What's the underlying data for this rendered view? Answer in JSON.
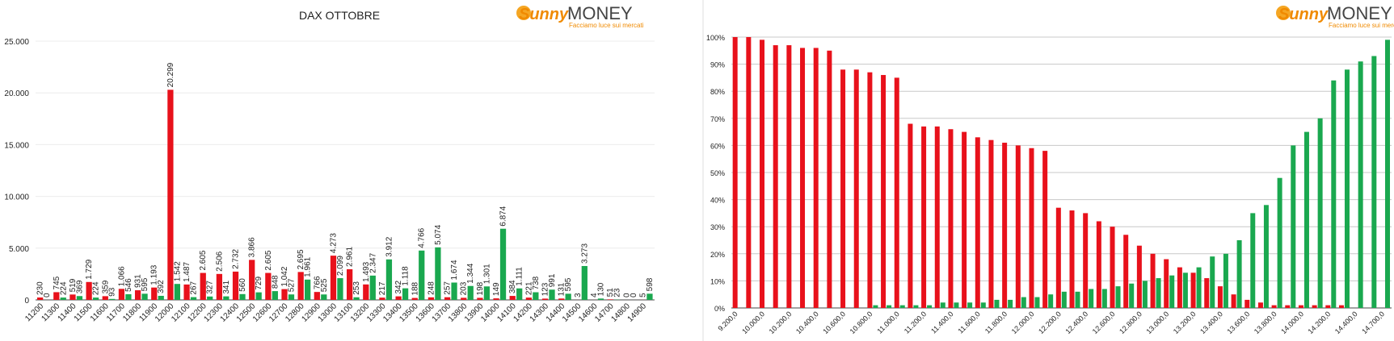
{
  "chart_data": [
    {
      "type": "bar",
      "title": "DAX OTTOBRE",
      "brand": "Sunny",
      "brand_suffix": "MONEY",
      "tagline": "Facciamo luce sui mercati",
      "categories": [
        "11200",
        "11300",
        "11400",
        "11500",
        "11600",
        "11700",
        "11800",
        "11900",
        "12000",
        "12100",
        "12200",
        "12300",
        "12400",
        "12500",
        "12600",
        "12700",
        "12800",
        "12900",
        "13000",
        "13100",
        "13200",
        "13300",
        "13400",
        "13500",
        "13600",
        "13700",
        "13800",
        "13900",
        "14000",
        "14100",
        "14200",
        "14300",
        "14400",
        "14500",
        "14600",
        "14700",
        "14800",
        "14900"
      ],
      "series": [
        {
          "color": "#e8111b",
          "values": [
            230,
            745,
            519,
            1729,
            359,
            1066,
            931,
            1193,
            20299,
            1487,
            2605,
            2506,
            2732,
            3866,
            2605,
            1042,
            2695,
            766,
            4273,
            2961,
            1493,
            217,
            342,
            188,
            248,
            257,
            203,
            198,
            149,
            384,
            221,
            123,
            131,
            3,
            4,
            51,
            0,
            5
          ],
          "value_labels": [
            "230",
            "745",
            "519",
            "1.729",
            "359",
            "1.066",
            "931",
            "1.193",
            "20.299",
            "1.487",
            "2.605",
            "2.506",
            "2.732",
            "3.866",
            "2.605",
            "1.042",
            "2.695",
            "766",
            "4.273",
            "2.961",
            "1.493",
            "217",
            "342",
            "188",
            "248",
            "257",
            "203",
            "198",
            "149",
            "384",
            "221",
            "123",
            "131",
            "3",
            "4",
            "51",
            "0",
            "5"
          ]
        },
        {
          "color": "#1aa84f",
          "values": [
            0,
            224,
            369,
            224,
            93,
            546,
            595,
            392,
            1542,
            267,
            327,
            341,
            560,
            729,
            848,
            527,
            1961,
            525,
            2099,
            253,
            2347,
            3912,
            1118,
            4766,
            5074,
            1674,
            1344,
            1301,
            6874,
            1111,
            738,
            991,
            595,
            3273,
            130,
            23,
            0,
            598
          ],
          "value_labels": [
            "0",
            "224",
            "369",
            "224",
            "93",
            "546",
            "595",
            "392",
            "1.542",
            "267",
            "327",
            "341",
            "560",
            "729",
            "848",
            "527",
            "1.961",
            "525",
            "2.099",
            "253",
            "2.347",
            "3.912",
            "1.118",
            "4.766",
            "5.074",
            "1.674",
            "1.344",
            "1.301",
            "6.874",
            "1.111",
            "738",
            "991",
            "595",
            "3.273",
            "130",
            "23",
            "0",
            "598"
          ]
        }
      ],
      "ylim": [
        0,
        25000
      ],
      "yticks": [
        0,
        {
          "value": 5000,
          "label": "5.000"
        },
        {
          "value": 10000,
          "label": "10.000"
        },
        {
          "value": 15000,
          "label": "15.000"
        },
        {
          "value": 20000,
          "label": "20.000"
        },
        {
          "value": 25000,
          "label": "25.000"
        }
      ],
      "grid": true
    },
    {
      "type": "bar",
      "brand": "Sunny",
      "brand_suffix": "MONEY",
      "tagline": "Facciamo luce sui mercati",
      "categories": [
        "9.200,0",
        null,
        "10.000,0",
        null,
        "10.200,0",
        null,
        "10.400,0",
        null,
        "10.600,0",
        null,
        "10.800,0",
        null,
        "11.000,0",
        null,
        "11.200,0",
        null,
        "11.400,0",
        null,
        "11.600,0",
        null,
        "11.800,0",
        null,
        "12.000,0",
        null,
        "12.200,0",
        null,
        "12.400,0",
        null,
        "12.600,0",
        null,
        "12.800,0",
        null,
        "13.000,0",
        null,
        "13.200,0",
        null,
        "13.400,0",
        null,
        "13.600,0",
        null,
        "13.800,0",
        null,
        "14.000,0",
        null,
        "14.200,0",
        null,
        "14.400,0",
        null,
        "14.700,0"
      ],
      "series": [
        {
          "color": "#e8111b",
          "values": [
            100,
            100,
            99,
            97,
            97,
            96,
            96,
            95,
            88,
            88,
            87,
            86,
            85,
            68,
            67,
            67,
            66,
            65,
            63,
            62,
            61,
            60,
            59,
            58,
            37,
            36,
            35,
            32,
            30,
            27,
            23,
            20,
            18,
            15,
            13,
            11,
            8,
            5,
            3,
            2,
            1,
            1,
            1,
            1,
            1,
            1,
            0,
            0,
            0
          ]
        },
        {
          "color": "#1aa84f",
          "values": [
            0,
            0,
            0,
            0,
            0,
            0,
            0,
            0,
            0,
            0,
            1,
            1,
            1,
            1,
            1,
            2,
            2,
            2,
            2,
            3,
            3,
            4,
            4,
            5,
            6,
            6,
            7,
            7,
            8,
            9,
            10,
            11,
            12,
            13,
            15,
            19,
            20,
            25,
            35,
            38,
            48,
            60,
            65,
            70,
            84,
            88,
            91,
            93,
            99
          ]
        }
      ],
      "ylim": [
        0,
        100
      ],
      "yticks": [
        {
          "value": 0,
          "label": "0%"
        },
        {
          "value": 10,
          "label": "10%"
        },
        {
          "value": 20,
          "label": "20%"
        },
        {
          "value": 30,
          "label": "30%"
        },
        {
          "value": 40,
          "label": "40%"
        },
        {
          "value": 50,
          "label": "50%"
        },
        {
          "value": 60,
          "label": "60%"
        },
        {
          "value": 70,
          "label": "70%"
        },
        {
          "value": 80,
          "label": "80%"
        },
        {
          "value": 90,
          "label": "90%"
        },
        {
          "value": 100,
          "label": "100%"
        }
      ],
      "grid": true
    }
  ]
}
